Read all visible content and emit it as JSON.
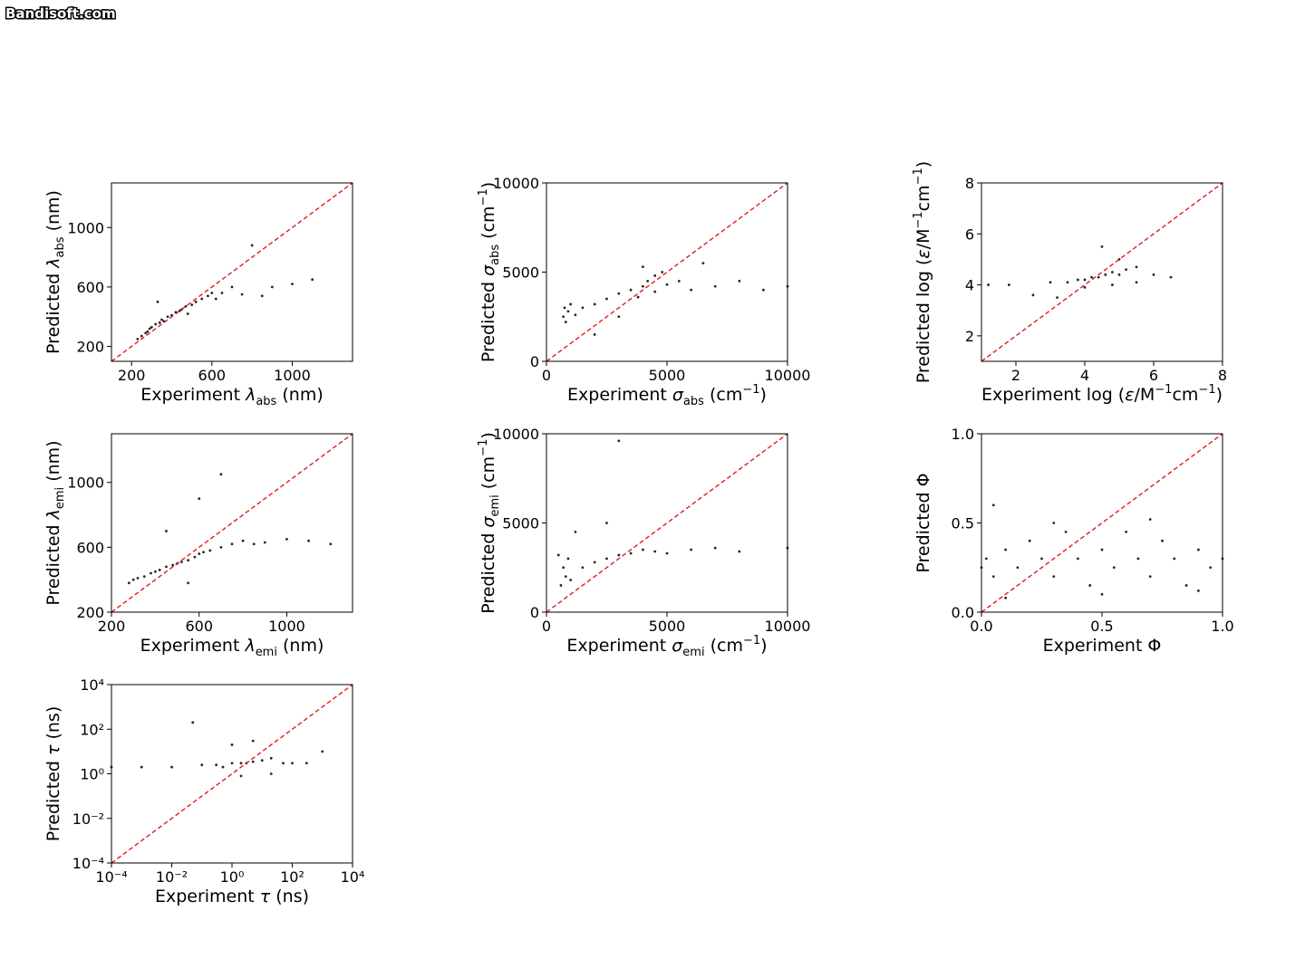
{
  "watermark": "Bandisoft.com",
  "chart_data": [
    {
      "type": "scatter",
      "color": "#000000",
      "identity_line": {
        "color": "#e31a1c",
        "dashed": true
      },
      "xlim": [
        100,
        1300
      ],
      "ylim": [
        100,
        1300
      ],
      "xticks": [
        200,
        600,
        1000
      ],
      "yticks": [
        200,
        600,
        1000
      ],
      "xlabel": [
        {
          "text": "Experiment "
        },
        {
          "text": "λ",
          "italic": true
        },
        {
          "text": "abs",
          "sub": true
        },
        {
          "text": " (nm)"
        }
      ],
      "ylabel": [
        {
          "text": "Predicted "
        },
        {
          "text": "λ",
          "italic": true
        },
        {
          "text": "abs",
          "sub": true
        },
        {
          "text": " (nm)"
        }
      ],
      "x": [
        230,
        250,
        270,
        290,
        300,
        320,
        340,
        350,
        360,
        380,
        400,
        420,
        440,
        450,
        470,
        500,
        520,
        550,
        580,
        600,
        620,
        650,
        700,
        750,
        800,
        850,
        900,
        1000,
        1100,
        280,
        330,
        480
      ],
      "values": [
        250,
        270,
        290,
        320,
        330,
        350,
        360,
        380,
        370,
        400,
        410,
        430,
        440,
        450,
        470,
        480,
        500,
        520,
        540,
        560,
        520,
        560,
        600,
        550,
        880,
        540,
        600,
        620,
        650,
        300,
        500,
        420
      ]
    },
    {
      "type": "scatter",
      "color": "#000000",
      "identity_line": {
        "color": "#e31a1c",
        "dashed": true
      },
      "xlim": [
        0,
        10000
      ],
      "ylim": [
        0,
        10000
      ],
      "xticks": [
        0,
        5000,
        10000
      ],
      "yticks": [
        0,
        5000,
        10000
      ],
      "xlabel": [
        {
          "text": "Experiment "
        },
        {
          "text": "σ",
          "italic": true
        },
        {
          "text": "abs",
          "sub": true
        },
        {
          "text": " (cm"
        },
        {
          "text": "−1",
          "sup": true
        },
        {
          "text": ")"
        }
      ],
      "ylabel": [
        {
          "text": "Predicted "
        },
        {
          "text": "σ",
          "italic": true
        },
        {
          "text": "abs",
          "sub": true
        },
        {
          "text": " (cm"
        },
        {
          "text": "−1",
          "sup": true
        },
        {
          "text": ")"
        }
      ],
      "x": [
        700,
        750,
        800,
        900,
        1200,
        1500,
        2000,
        2500,
        3000,
        3500,
        4000,
        4200,
        4500,
        4800,
        5000,
        5500,
        6000,
        7000,
        8000,
        9000,
        10000,
        3000,
        4000,
        2000,
        6500,
        1000,
        3800,
        4500
      ],
      "values": [
        2500,
        3000,
        2200,
        2800,
        2600,
        3000,
        3200,
        3500,
        3800,
        4000,
        4200,
        4500,
        4800,
        5000,
        4300,
        4500,
        4000,
        4200,
        4500,
        4000,
        4200,
        2500,
        5300,
        1500,
        5500,
        3200,
        3600,
        3900
      ]
    },
    {
      "type": "scatter",
      "color": "#000000",
      "identity_line": {
        "color": "#e31a1c",
        "dashed": true
      },
      "xlim": [
        1,
        8
      ],
      "ylim": [
        1,
        8
      ],
      "xticks": [
        2,
        4,
        6,
        8
      ],
      "yticks": [
        2,
        4,
        6,
        8
      ],
      "xlabel": [
        {
          "text": "Experiment log ("
        },
        {
          "text": "ε",
          "italic": true
        },
        {
          "text": "/M"
        },
        {
          "text": "−1",
          "sup": true
        },
        {
          "text": "cm"
        },
        {
          "text": "−1",
          "sup": true
        },
        {
          "text": ")"
        }
      ],
      "ylabel": [
        {
          "text": "Predicted log ("
        },
        {
          "text": "ε",
          "italic": true
        },
        {
          "text": "/M"
        },
        {
          "text": "−1",
          "sup": true
        },
        {
          "text": "cm"
        },
        {
          "text": "−1",
          "sup": true
        },
        {
          "text": ")"
        }
      ],
      "x": [
        1.2,
        1.8,
        2.5,
        3.0,
        3.5,
        3.8,
        4.0,
        4.2,
        4.4,
        4.6,
        4.8,
        5.0,
        5.2,
        5.5,
        6.0,
        6.5,
        4.5,
        4.0,
        3.2,
        5.0,
        4.8,
        5.5
      ],
      "values": [
        4.0,
        4.0,
        3.6,
        4.1,
        4.1,
        4.2,
        4.2,
        4.3,
        4.3,
        4.4,
        4.5,
        4.4,
        4.6,
        4.7,
        4.4,
        4.3,
        5.5,
        3.9,
        3.5,
        5.0,
        4.0,
        4.1
      ]
    },
    {
      "type": "scatter",
      "color": "#000000",
      "identity_line": {
        "color": "#e31a1c",
        "dashed": true
      },
      "xlim": [
        200,
        1300
      ],
      "ylim": [
        200,
        1300
      ],
      "xticks": [
        200,
        600,
        1000
      ],
      "yticks": [
        200,
        600,
        1000
      ],
      "xlabel": [
        {
          "text": "Experiment "
        },
        {
          "text": "λ",
          "italic": true
        },
        {
          "text": "emi",
          "sub": true
        },
        {
          "text": " (nm)"
        }
      ],
      "ylabel": [
        {
          "text": "Predicted "
        },
        {
          "text": "λ",
          "italic": true
        },
        {
          "text": "emi",
          "sub": true
        },
        {
          "text": " (nm)"
        }
      ],
      "x": [
        280,
        300,
        320,
        350,
        380,
        400,
        420,
        450,
        480,
        500,
        520,
        550,
        580,
        600,
        620,
        650,
        700,
        750,
        800,
        850,
        900,
        1000,
        1100,
        1200,
        450,
        550,
        700,
        600
      ],
      "values": [
        380,
        400,
        410,
        420,
        440,
        450,
        460,
        480,
        490,
        500,
        510,
        520,
        540,
        560,
        570,
        580,
        600,
        620,
        640,
        620,
        630,
        650,
        640,
        620,
        700,
        380,
        1050,
        900
      ]
    },
    {
      "type": "scatter",
      "color": "#000000",
      "identity_line": {
        "color": "#e31a1c",
        "dashed": true
      },
      "xlim": [
        0,
        10000
      ],
      "ylim": [
        0,
        10000
      ],
      "xticks": [
        0,
        5000,
        10000
      ],
      "yticks": [
        0,
        5000,
        10000
      ],
      "xlabel": [
        {
          "text": "Experiment "
        },
        {
          "text": "σ",
          "italic": true
        },
        {
          "text": "emi",
          "sub": true
        },
        {
          "text": " (cm"
        },
        {
          "text": "−1",
          "sup": true
        },
        {
          "text": ")"
        }
      ],
      "ylabel": [
        {
          "text": "Predicted "
        },
        {
          "text": "σ",
          "italic": true
        },
        {
          "text": "emi",
          "sub": true
        },
        {
          "text": " (cm"
        },
        {
          "text": "−1",
          "sup": true
        },
        {
          "text": ")"
        }
      ],
      "x": [
        600,
        700,
        800,
        900,
        1000,
        1500,
        2000,
        2500,
        3000,
        3500,
        4000,
        4500,
        5000,
        6000,
        7000,
        8000,
        10000,
        2500,
        3000,
        1200,
        500
      ],
      "values": [
        1500,
        2500,
        2000,
        3000,
        1800,
        2500,
        2800,
        3000,
        3200,
        3300,
        3500,
        3400,
        3300,
        3500,
        3600,
        3400,
        3600,
        5000,
        9600,
        4500,
        3200
      ]
    },
    {
      "type": "scatter",
      "color": "#000000",
      "identity_line": {
        "color": "#e31a1c",
        "dashed": true
      },
      "xlim": [
        0,
        1
      ],
      "ylim": [
        0,
        1
      ],
      "xticks": [
        {
          "value": 0,
          "label": "0.0"
        },
        0.5,
        {
          "value": 1,
          "label": "1.0"
        }
      ],
      "yticks": [
        {
          "value": 0,
          "label": "0.0"
        },
        0.5,
        {
          "value": 1,
          "label": "1.0"
        }
      ],
      "xlabel": [
        {
          "text": "Experiment Φ"
        }
      ],
      "ylabel": [
        {
          "text": "Predicted Φ"
        }
      ],
      "x": [
        0.0,
        0.02,
        0.05,
        0.1,
        0.15,
        0.2,
        0.25,
        0.3,
        0.35,
        0.4,
        0.45,
        0.5,
        0.55,
        0.6,
        0.65,
        0.7,
        0.75,
        0.8,
        0.85,
        0.9,
        0.95,
        1.0,
        0.1,
        0.3,
        0.5,
        0.7,
        0.9,
        0.05
      ],
      "values": [
        0.25,
        0.3,
        0.2,
        0.35,
        0.25,
        0.4,
        0.3,
        0.2,
        0.45,
        0.3,
        0.15,
        0.35,
        0.25,
        0.45,
        0.3,
        0.2,
        0.4,
        0.3,
        0.15,
        0.35,
        0.25,
        0.3,
        0.08,
        0.5,
        0.1,
        0.52,
        0.12,
        0.6
      ]
    },
    {
      "type": "scatter",
      "color": "#000000",
      "identity_line": {
        "color": "#e31a1c",
        "dashed": true
      },
      "log_scale": true,
      "xlim": [
        0.0001,
        10000
      ],
      "ylim": [
        0.0001,
        10000
      ],
      "xticks": [
        {
          "value": 0.0001,
          "label": "10⁻⁴"
        },
        {
          "value": 0.01,
          "label": "10⁻²"
        },
        {
          "value": 1,
          "label": "10⁰"
        },
        {
          "value": 100,
          "label": "10²"
        },
        {
          "value": 10000,
          "label": "10⁴"
        }
      ],
      "yticks": [
        {
          "value": 0.0001,
          "label": "10⁻⁴"
        },
        {
          "value": 0.01,
          "label": "10⁻²"
        },
        {
          "value": 1,
          "label": "10⁰"
        },
        {
          "value": 100,
          "label": "10²"
        },
        {
          "value": 10000,
          "label": "10⁴"
        }
      ],
      "xlabel": [
        {
          "text": "Experiment "
        },
        {
          "text": "τ",
          "italic": true
        },
        {
          "text": " (ns)"
        }
      ],
      "ylabel": [
        {
          "text": "Predicted "
        },
        {
          "text": "τ",
          "italic": true
        },
        {
          "text": " (ns)"
        }
      ],
      "x": [
        0.0001,
        0.001,
        0.01,
        0.1,
        0.3,
        0.5,
        1,
        2,
        3,
        5,
        10,
        20,
        50,
        100,
        300,
        1000,
        1,
        5,
        0.05,
        2,
        20
      ],
      "values": [
        2,
        2,
        2,
        2.5,
        2.5,
        2,
        3,
        3,
        3,
        3.5,
        4,
        5,
        3,
        3,
        3,
        10,
        20,
        30,
        200,
        0.8,
        1
      ]
    }
  ]
}
